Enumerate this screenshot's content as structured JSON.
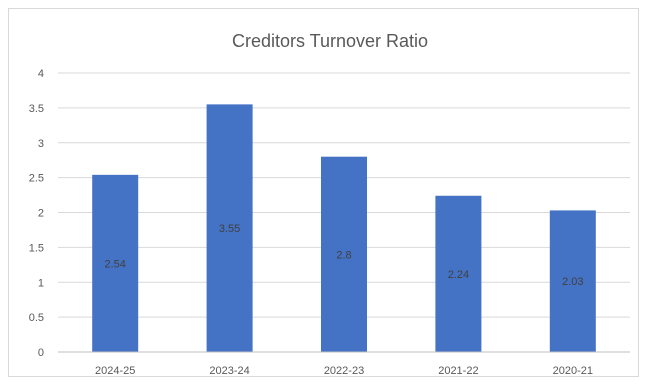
{
  "chart_data": {
    "type": "bar",
    "title": "Creditors Turnover Ratio",
    "xlabel": "",
    "ylabel": "",
    "categories": [
      "2024-25",
      "2023-24",
      "2022-23",
      "2021-22",
      "2020-21"
    ],
    "values": [
      2.54,
      3.55,
      2.8,
      2.24,
      2.03
    ],
    "data_labels": [
      "2.54",
      "3.55",
      "2.8",
      "2.24",
      "2.03"
    ],
    "ylim": [
      0,
      4
    ],
    "yticks": [
      "0",
      "0.5",
      "1",
      "1.5",
      "2",
      "2.5",
      "3",
      "3.5",
      "4"
    ],
    "ytick_values": [
      0,
      0.5,
      1,
      1.5,
      2,
      2.5,
      3,
      3.5,
      4
    ],
    "grid": true,
    "legend": "none",
    "bar_color": "#4472c4",
    "grid_color": "#d9d9d9"
  }
}
